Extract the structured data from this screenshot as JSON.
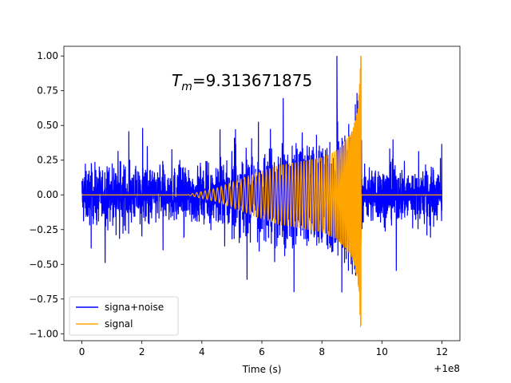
{
  "chart_data": {
    "type": "line",
    "xlabel": "Time (s)",
    "ylabel": "",
    "x_offset_label": "+1e8",
    "xlim": [
      -0.6,
      12.6
    ],
    "ylim": [
      -1.05,
      1.07
    ],
    "x_ticks": [
      0,
      2,
      4,
      6,
      8,
      10,
      12
    ],
    "x_tick_labels": [
      "0",
      "2",
      "4",
      "6",
      "8",
      "10",
      "12"
    ],
    "y_ticks": [
      -1.0,
      -0.75,
      -0.5,
      -0.25,
      0.0,
      0.25,
      0.5,
      0.75,
      1.0
    ],
    "y_tick_labels": [
      "−1.00",
      "−0.75",
      "−0.50",
      "−0.25",
      "0.00",
      "0.25",
      "0.50",
      "0.75",
      "1.00"
    ],
    "annotation": {
      "prefix": "T",
      "subscript": "m",
      "value": "=9.313671875",
      "x": 3.0,
      "y": 0.8
    },
    "legend": {
      "placement": "lower-left"
    },
    "series": [
      {
        "name": "signa+noise",
        "color": "#0000ff",
        "x_range": [
          0,
          12
        ],
        "noise_amplitude": 0.3,
        "peak_max": 1.0,
        "peak_min": -0.83
      },
      {
        "name": "signal",
        "color": "#ffa500",
        "merger_time": 9.313671875,
        "envelope": [
          {
            "x": 0.0,
            "y": 0.0
          },
          {
            "x": 3.5,
            "y": 0.0
          },
          {
            "x": 4.5,
            "y": 0.05
          },
          {
            "x": 5.5,
            "y": 0.13
          },
          {
            "x": 6.0,
            "y": 0.17
          },
          {
            "x": 6.5,
            "y": 0.21
          },
          {
            "x": 7.0,
            "y": 0.23
          },
          {
            "x": 7.5,
            "y": 0.25
          },
          {
            "x": 8.0,
            "y": 0.27
          },
          {
            "x": 8.5,
            "y": 0.32
          },
          {
            "x": 9.0,
            "y": 0.45
          },
          {
            "x": 9.2,
            "y": 0.62
          },
          {
            "x": 9.3,
            "y": 1.0
          },
          {
            "x": 9.313671875,
            "y": 0.0
          },
          {
            "x": 12.0,
            "y": 0.0
          }
        ],
        "peak_max": 1.0,
        "peak_min": -0.94
      }
    ]
  }
}
